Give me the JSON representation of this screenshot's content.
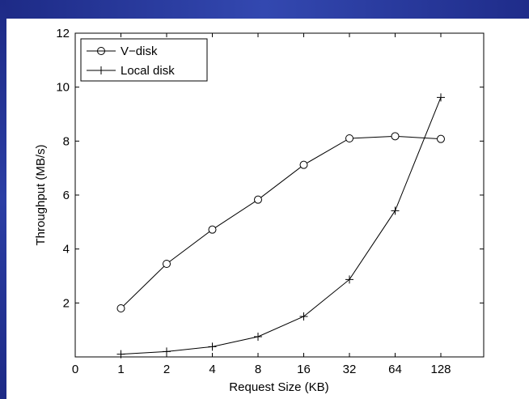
{
  "colors": {
    "banner": "#2b3ea4",
    "axis": "#000000",
    "series": "#000000"
  },
  "chart_data": {
    "type": "line",
    "title": "",
    "xlabel": "Request Size (KB)",
    "ylabel": "Throughput (MB/s)",
    "x_ticks": [
      "0",
      "1",
      "2",
      "4",
      "8",
      "16",
      "32",
      "64",
      "128"
    ],
    "x_scale": "log2 categories",
    "y_ticks": [
      "2",
      "4",
      "6",
      "8",
      "10",
      "12"
    ],
    "ylim": [
      0,
      12
    ],
    "grid": false,
    "legend_position": "top-left",
    "categories": [
      "1",
      "2",
      "4",
      "8",
      "16",
      "32",
      "64",
      "128"
    ],
    "series": [
      {
        "name": "V−disk",
        "marker": "circle",
        "values": [
          1.8,
          3.45,
          4.72,
          5.83,
          7.12,
          8.1,
          8.18,
          8.08
        ]
      },
      {
        "name": "Local disk",
        "marker": "plus",
        "values": [
          0.1,
          0.2,
          0.38,
          0.75,
          1.5,
          2.87,
          5.42,
          9.62
        ]
      }
    ]
  }
}
